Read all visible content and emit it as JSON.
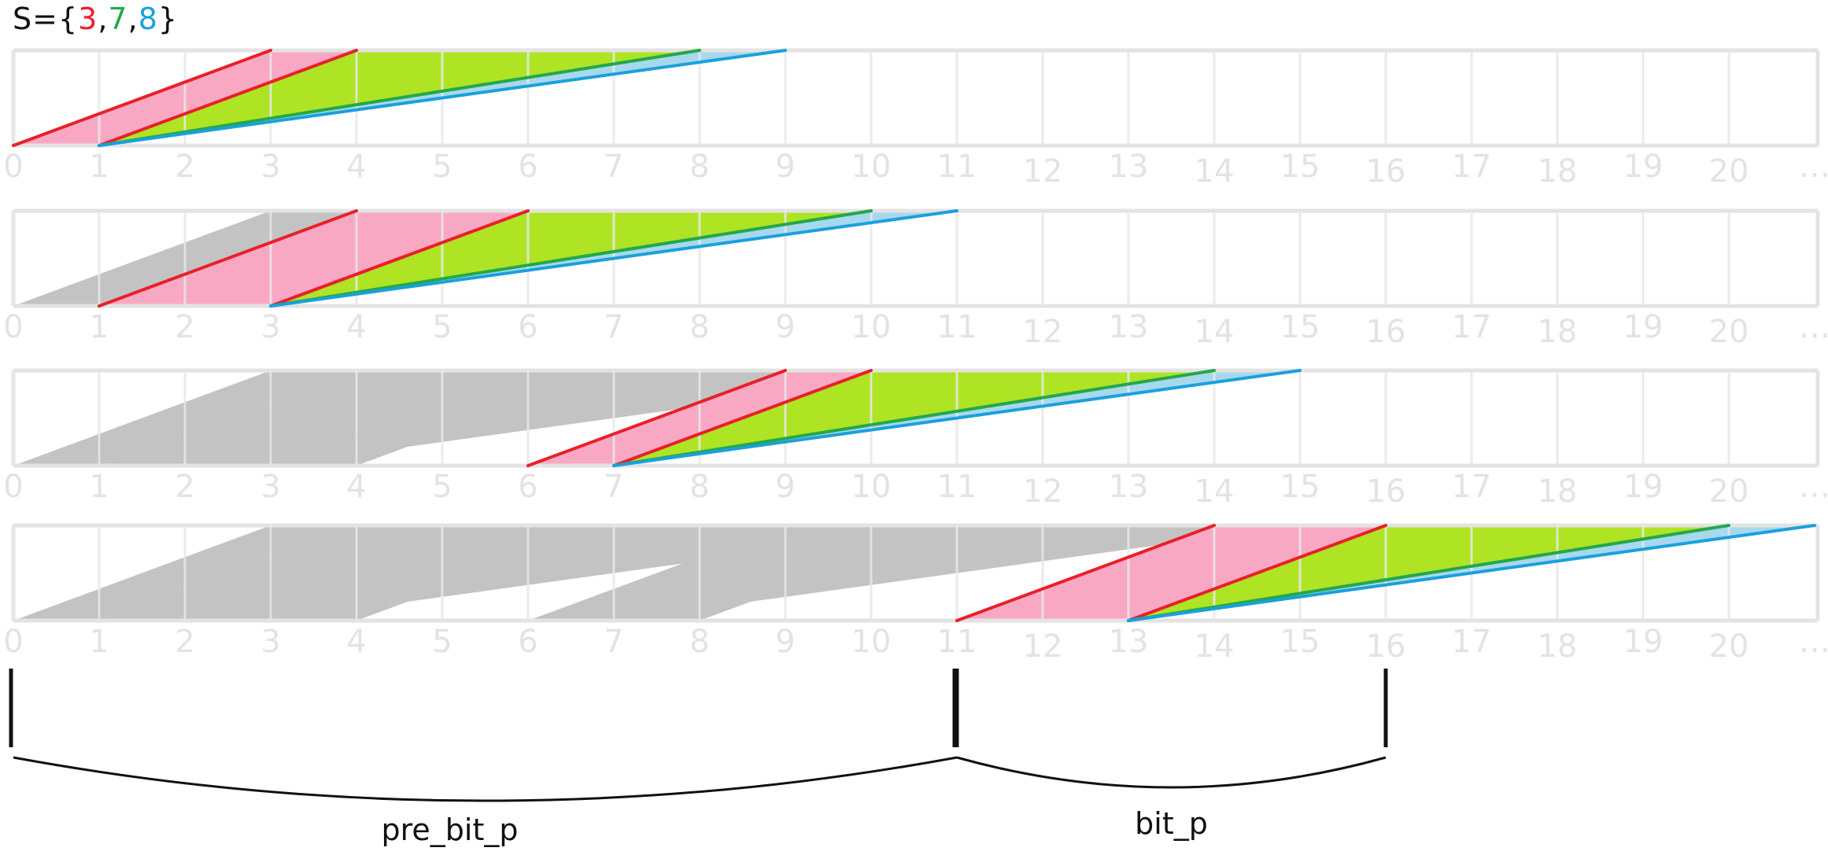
{
  "set": {
    "prefix": "S={",
    "sep": ",",
    "suffix": "}",
    "elements": [
      {
        "value": "3",
        "color": "#e8202a"
      },
      {
        "value": "7",
        "color": "#22a84a"
      },
      {
        "value": "8",
        "color": "#1aa0dc"
      }
    ]
  },
  "colors": {
    "pink_fill": "#f9a8c4",
    "green_fill": "#aee423",
    "blue_fill": "#a7d8ee",
    "gray_fill": "#c3c3c3",
    "grid": "#e3e3e3",
    "red_line": "#e8202a",
    "green_line": "#22a84a",
    "blue_line": "#1aa0dc"
  },
  "axis_labels": [
    "0",
    "1",
    "2",
    "3",
    "4",
    "5",
    "6",
    "7",
    "8",
    "9",
    "10",
    "11",
    "12",
    "13",
    "14",
    "15",
    "16",
    "17",
    "18",
    "19",
    "20",
    "…"
  ],
  "rows": [
    {
      "pink": [
        [
          0,
          1
        ]
      ],
      "gray_starts": []
    },
    {
      "pink": [
        [
          1,
          3
        ]
      ],
      "gray_starts": [
        0
      ]
    },
    {
      "pink": [
        [
          6,
          7
        ]
      ],
      "gray_starts": [
        0,
        1,
        3
      ]
    },
    {
      "pink": [
        [
          11,
          13
        ]
      ],
      "gray_starts": [
        0,
        1,
        3,
        6,
        7
      ]
    }
  ],
  "braces": [
    {
      "label": "pre_bit_p",
      "from": 0,
      "to": 11
    },
    {
      "label": "bit_p",
      "from": 11,
      "to": 16
    }
  ]
}
